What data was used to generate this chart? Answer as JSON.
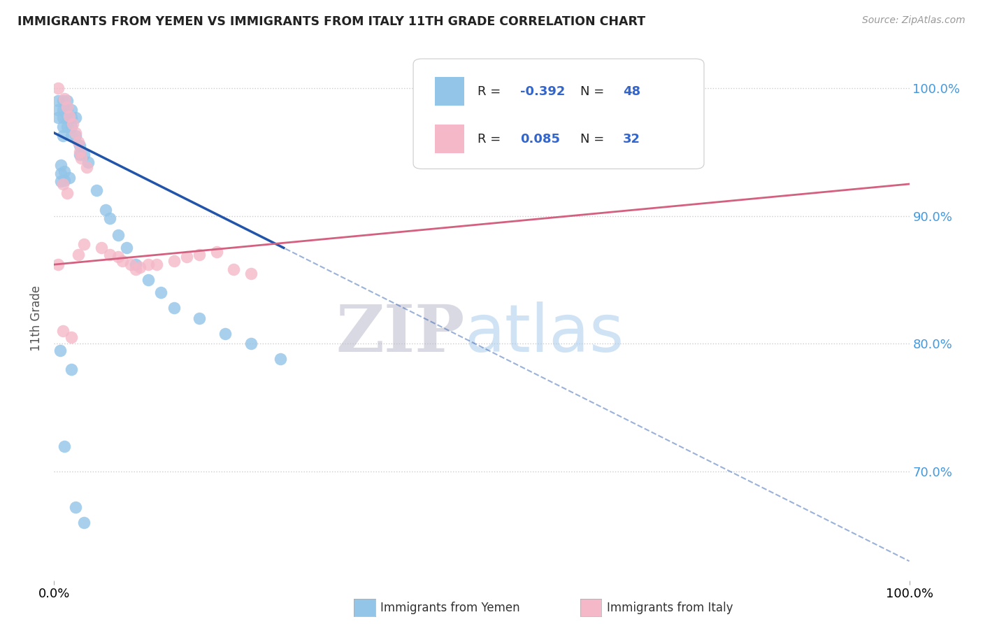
{
  "title": "IMMIGRANTS FROM YEMEN VS IMMIGRANTS FROM ITALY 11TH GRADE CORRELATION CHART",
  "source": "Source: ZipAtlas.com",
  "ylabel": "11th Grade",
  "xlim": [
    0.0,
    1.0
  ],
  "ylim": [
    0.615,
    1.025
  ],
  "yticks": [
    0.7,
    0.8,
    0.9,
    1.0
  ],
  "ytick_labels": [
    "70.0%",
    "80.0%",
    "90.0%",
    "100.0%"
  ],
  "blue_color": "#93C5E8",
  "pink_color": "#F5B8C8",
  "blue_line_color": "#2255AA",
  "pink_line_color": "#D46080",
  "blue_line_solid_end": 0.27,
  "blue_line_x0": 0.0,
  "blue_line_y0": 0.965,
  "blue_line_x1": 1.0,
  "blue_line_y1": 0.63,
  "pink_line_x0": 0.0,
  "pink_line_y0": 0.862,
  "pink_line_x1": 1.0,
  "pink_line_y1": 0.925,
  "blue_scatter": [
    [
      0.005,
      0.99
    ],
    [
      0.005,
      0.983
    ],
    [
      0.005,
      0.977
    ],
    [
      0.01,
      0.99
    ],
    [
      0.01,
      0.983
    ],
    [
      0.01,
      0.977
    ],
    [
      0.01,
      0.97
    ],
    [
      0.01,
      0.963
    ],
    [
      0.015,
      0.99
    ],
    [
      0.015,
      0.983
    ],
    [
      0.015,
      0.977
    ],
    [
      0.015,
      0.97
    ],
    [
      0.02,
      0.983
    ],
    [
      0.02,
      0.977
    ],
    [
      0.02,
      0.97
    ],
    [
      0.02,
      0.963
    ],
    [
      0.025,
      0.977
    ],
    [
      0.025,
      0.963
    ],
    [
      0.03,
      0.955
    ],
    [
      0.03,
      0.948
    ],
    [
      0.035,
      0.948
    ],
    [
      0.04,
      0.942
    ],
    [
      0.05,
      0.92
    ],
    [
      0.06,
      0.905
    ],
    [
      0.065,
      0.898
    ],
    [
      0.075,
      0.885
    ],
    [
      0.085,
      0.875
    ],
    [
      0.095,
      0.862
    ],
    [
      0.11,
      0.85
    ],
    [
      0.125,
      0.84
    ],
    [
      0.14,
      0.828
    ],
    [
      0.17,
      0.82
    ],
    [
      0.2,
      0.808
    ],
    [
      0.23,
      0.8
    ],
    [
      0.265,
      0.788
    ],
    [
      0.008,
      0.94
    ],
    [
      0.008,
      0.933
    ],
    [
      0.008,
      0.927
    ],
    [
      0.012,
      0.935
    ],
    [
      0.012,
      0.928
    ],
    [
      0.018,
      0.93
    ],
    [
      0.007,
      0.795
    ],
    [
      0.02,
      0.78
    ],
    [
      0.012,
      0.72
    ],
    [
      0.025,
      0.672
    ],
    [
      0.035,
      0.66
    ]
  ],
  "pink_scatter": [
    [
      0.005,
      1.0
    ],
    [
      0.012,
      0.992
    ],
    [
      0.015,
      0.985
    ],
    [
      0.018,
      0.978
    ],
    [
      0.022,
      0.972
    ],
    [
      0.025,
      0.965
    ],
    [
      0.028,
      0.958
    ],
    [
      0.03,
      0.95
    ],
    [
      0.032,
      0.945
    ],
    [
      0.038,
      0.938
    ],
    [
      0.01,
      0.925
    ],
    [
      0.015,
      0.918
    ],
    [
      0.028,
      0.87
    ],
    [
      0.065,
      0.87
    ],
    [
      0.075,
      0.868
    ],
    [
      0.08,
      0.865
    ],
    [
      0.09,
      0.862
    ],
    [
      0.095,
      0.858
    ],
    [
      0.1,
      0.86
    ],
    [
      0.11,
      0.862
    ],
    [
      0.12,
      0.862
    ],
    [
      0.14,
      0.865
    ],
    [
      0.155,
      0.868
    ],
    [
      0.17,
      0.87
    ],
    [
      0.19,
      0.872
    ],
    [
      0.21,
      0.858
    ],
    [
      0.23,
      0.855
    ],
    [
      0.035,
      0.878
    ],
    [
      0.055,
      0.875
    ],
    [
      0.005,
      0.862
    ],
    [
      0.01,
      0.81
    ],
    [
      0.02,
      0.805
    ]
  ]
}
